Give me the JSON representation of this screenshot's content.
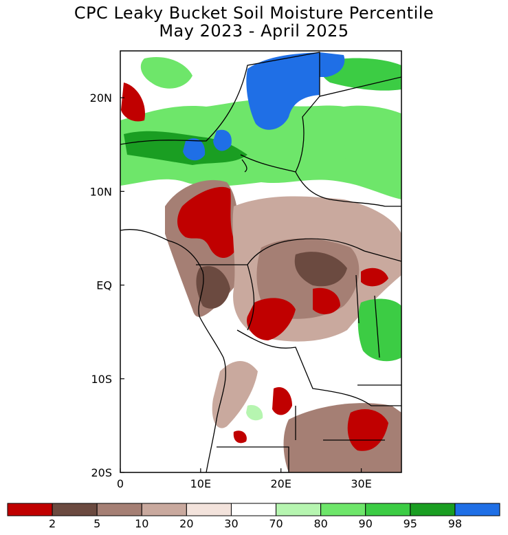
{
  "title": {
    "line1": "CPC Leaky Bucket Soil Moisture Percentile",
    "line2": "May 2023 - April 2025"
  },
  "map": {
    "lon_range": [
      0,
      35
    ],
    "lat_range": [
      -20,
      25
    ],
    "lat_ticks": [
      {
        "value": 20,
        "label": "20N"
      },
      {
        "value": 10,
        "label": "10N"
      },
      {
        "value": 0,
        "label": "EQ"
      },
      {
        "value": -10,
        "label": "10S"
      },
      {
        "value": -20,
        "label": "20S"
      }
    ],
    "lon_ticks": [
      {
        "value": 0,
        "label": "0"
      },
      {
        "value": 10,
        "label": "10E"
      },
      {
        "value": 20,
        "label": "20E"
      },
      {
        "value": 30,
        "label": "30E"
      }
    ]
  },
  "legend": {
    "colors": [
      "#c00000",
      "#6b4a40",
      "#a57f74",
      "#c9a99e",
      "#f3e3dc",
      "#ffffff",
      "#b6f5b0",
      "#6ee66a",
      "#3ccc44",
      "#1a9e22",
      "#1f6fe6"
    ],
    "labels": [
      "2",
      "5",
      "10",
      "20",
      "30",
      "70",
      "80",
      "90",
      "95",
      "98"
    ]
  }
}
